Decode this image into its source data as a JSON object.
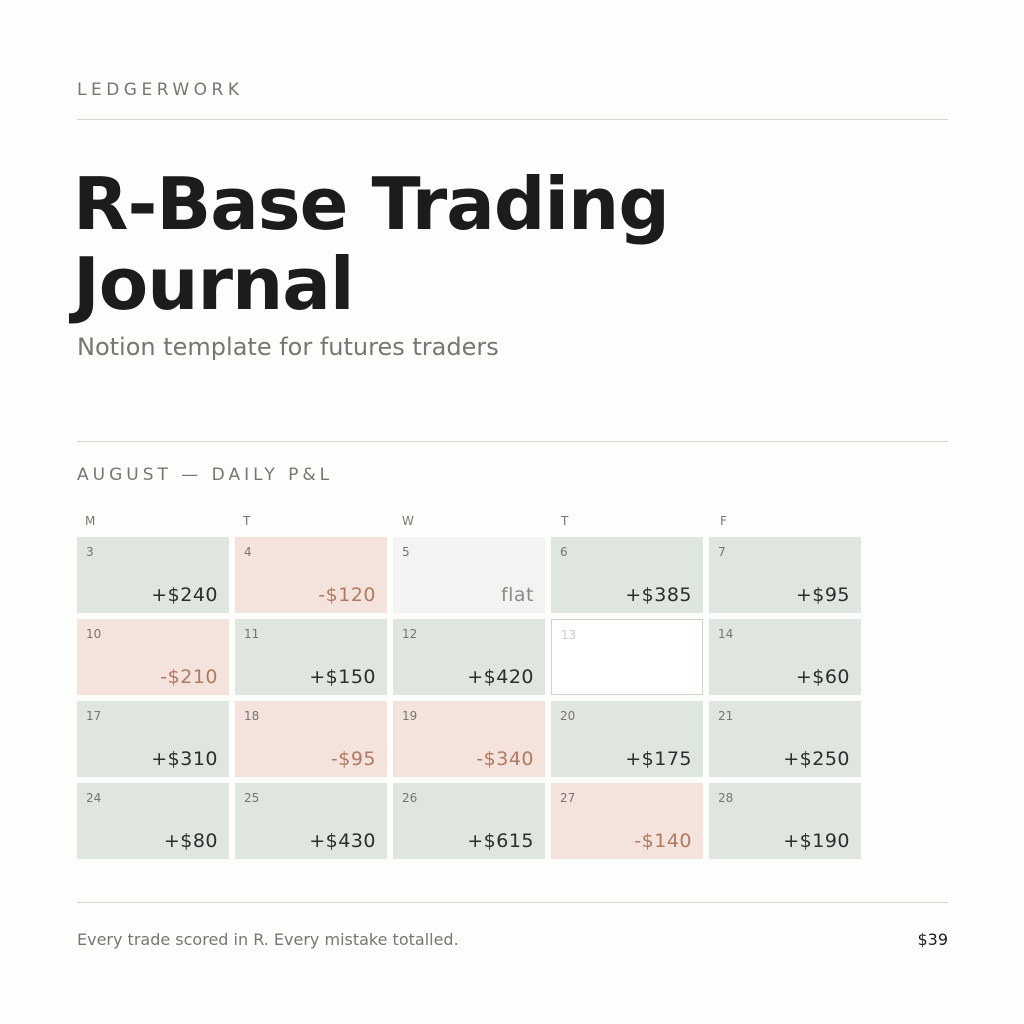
{
  "brand": "LEDGERWORK",
  "title": "R-Base Trading Journal",
  "subtitle": "Notion template for futures traders",
  "calendar": {
    "label": "AUGUST — DAILY P&L",
    "weekdays": [
      "M",
      "T",
      "W",
      "T",
      "F"
    ],
    "weeks": [
      [
        {
          "day": "3",
          "pnl": "+$240",
          "type": "gain"
        },
        {
          "day": "4",
          "pnl": "-$120",
          "type": "loss"
        },
        {
          "day": "5",
          "pnl": "flat",
          "type": "flat"
        },
        {
          "day": "6",
          "pnl": "+$385",
          "type": "gain"
        },
        {
          "day": "7",
          "pnl": "+$95",
          "type": "gain"
        }
      ],
      [
        {
          "day": "10",
          "pnl": "-$210",
          "type": "loss"
        },
        {
          "day": "11",
          "pnl": "+$150",
          "type": "gain"
        },
        {
          "day": "12",
          "pnl": "+$420",
          "type": "gain"
        },
        {
          "day": "13",
          "pnl": "",
          "type": "empty"
        },
        {
          "day": "14",
          "pnl": "+$60",
          "type": "gain"
        }
      ],
      [
        {
          "day": "17",
          "pnl": "+$310",
          "type": "gain"
        },
        {
          "day": "18",
          "pnl": "-$95",
          "type": "loss"
        },
        {
          "day": "19",
          "pnl": "-$340",
          "type": "loss"
        },
        {
          "day": "20",
          "pnl": "+$175",
          "type": "gain"
        },
        {
          "day": "21",
          "pnl": "+$250",
          "type": "gain"
        }
      ],
      [
        {
          "day": "24",
          "pnl": "+$80",
          "type": "gain"
        },
        {
          "day": "25",
          "pnl": "+$430",
          "type": "gain"
        },
        {
          "day": "26",
          "pnl": "+$615",
          "type": "gain"
        },
        {
          "day": "27",
          "pnl": "-$140",
          "type": "loss"
        },
        {
          "day": "28",
          "pnl": "+$190",
          "type": "gain"
        }
      ]
    ]
  },
  "footer": {
    "tagline": "Every trade scored in R. Every mistake totalled.",
    "price": "$39"
  },
  "colors": {
    "gain": "#dfe5df",
    "loss": "#f3e3dc",
    "flat": "#f3f3f1",
    "loss_text": "#b07a62"
  }
}
